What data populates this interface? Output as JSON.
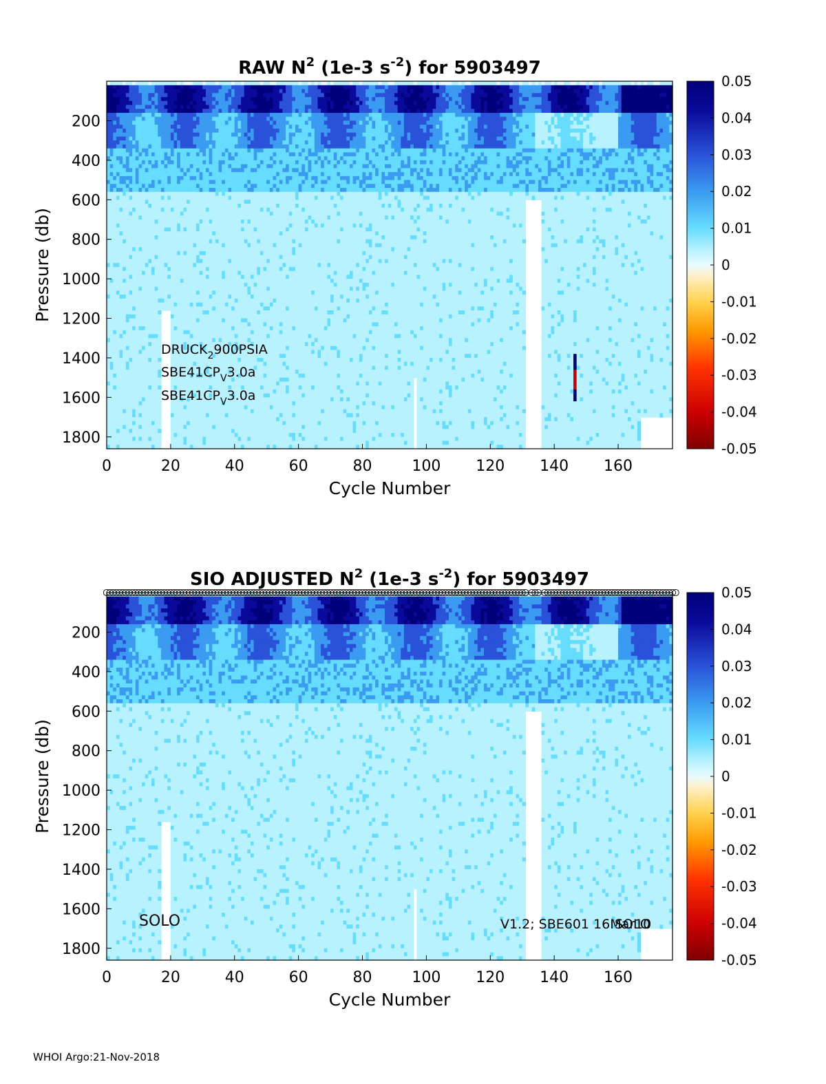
{
  "footer": "WHOI Argo:21-Nov-2018",
  "colorbar": {
    "ticks": [
      "0.05",
      "0.04",
      "0.03",
      "0.02",
      "0.01",
      "0",
      "-0.01",
      "-0.02",
      "-0.03",
      "-0.04",
      "-0.05"
    ],
    "range": [
      -0.05,
      0.05
    ],
    "colors": [
      "#7f0000",
      "#cc0000",
      "#ff3300",
      "#ff9900",
      "#ffd24d",
      "#fff0c8",
      "#e8fbff",
      "#b8f2ff",
      "#66dcff",
      "#3a9bf0",
      "#2a52d8",
      "#0a0a9a",
      "#00007a"
    ]
  },
  "chart_data": [
    {
      "type": "heatmap",
      "title_parts": {
        "pre": "RAW N",
        "sup1": "2",
        "mid": " (1e-3 s",
        "sup2": "-2",
        "post": ") for 5903497"
      },
      "xlabel": "Cycle Number",
      "ylabel": "Pressure (db)",
      "xlim": [
        0,
        177
      ],
      "ylim": [
        1860,
        0
      ],
      "xticks": [
        "0",
        "20",
        "40",
        "60",
        "80",
        "100",
        "120",
        "140",
        "160"
      ],
      "yticks": [
        "200",
        "400",
        "600",
        "800",
        "1000",
        "1200",
        "1400",
        "1600",
        "1800"
      ],
      "annotations": [
        {
          "pre": "DRUCK",
          "sub": "2",
          "post": "900PSIA"
        },
        {
          "pre": "SBE41CP",
          "sub": "V",
          "post": "3.0a"
        },
        {
          "pre": "SBE41CP",
          "sub": "V",
          "post": "3.0a"
        }
      ],
      "value_bands": [
        {
          "p_from": 20,
          "p_to": 150,
          "value": 0.045
        },
        {
          "p_from": 150,
          "p_to": 330,
          "value": 0.03
        },
        {
          "p_from": 330,
          "p_to": 560,
          "value": 0.018
        },
        {
          "p_from": 560,
          "p_to": 1860,
          "value": 0.009
        }
      ],
      "gaps": [
        {
          "cycle": [
            17,
            20
          ],
          "p": [
            1160,
            1860
          ]
        },
        {
          "cycle": [
            131,
            136
          ],
          "p": [
            600,
            1860
          ]
        },
        {
          "cycle": [
            96,
            97
          ],
          "p": [
            1500,
            1860
          ]
        },
        {
          "cycle": [
            167,
            177
          ],
          "p": [
            1690,
            1860
          ]
        }
      ],
      "spike": {
        "cycle": 146,
        "p": [
          1380,
          1620
        ],
        "value": -0.04
      }
    },
    {
      "type": "heatmap",
      "title_parts": {
        "pre": "SIO  ADJUSTED N",
        "sup1": "2",
        "mid": " (1e-3 s",
        "sup2": "-2",
        "post": ") for 5903497"
      },
      "xlabel": "Cycle Number",
      "ylabel": "Pressure (db)",
      "xlim": [
        0,
        177
      ],
      "ylim": [
        1860,
        0
      ],
      "xticks": [
        "0",
        "20",
        "40",
        "60",
        "80",
        "100",
        "120",
        "140",
        "160"
      ],
      "yticks": [
        "200",
        "400",
        "600",
        "800",
        "1000",
        "1200",
        "1400",
        "1600",
        "1800"
      ],
      "labels": {
        "left": "SOLO",
        "right": "V1.2; SBE601 16Mar10",
        "right_overlap": "SOLO"
      },
      "markers": "open circles at the top of every cycle",
      "value_bands": [
        {
          "p_from": 20,
          "p_to": 150,
          "value": 0.045
        },
        {
          "p_from": 150,
          "p_to": 330,
          "value": 0.03
        },
        {
          "p_from": 330,
          "p_to": 560,
          "value": 0.018
        },
        {
          "p_from": 560,
          "p_to": 1860,
          "value": 0.009
        }
      ],
      "gaps": [
        {
          "cycle": [
            17,
            20
          ],
          "p": [
            1160,
            1860
          ]
        },
        {
          "cycle": [
            131,
            136
          ],
          "p": [
            600,
            1860
          ]
        },
        {
          "cycle": [
            96,
            97
          ],
          "p": [
            1500,
            1860
          ]
        },
        {
          "cycle": [
            167,
            177
          ],
          "p": [
            1690,
            1860
          ]
        }
      ]
    }
  ]
}
